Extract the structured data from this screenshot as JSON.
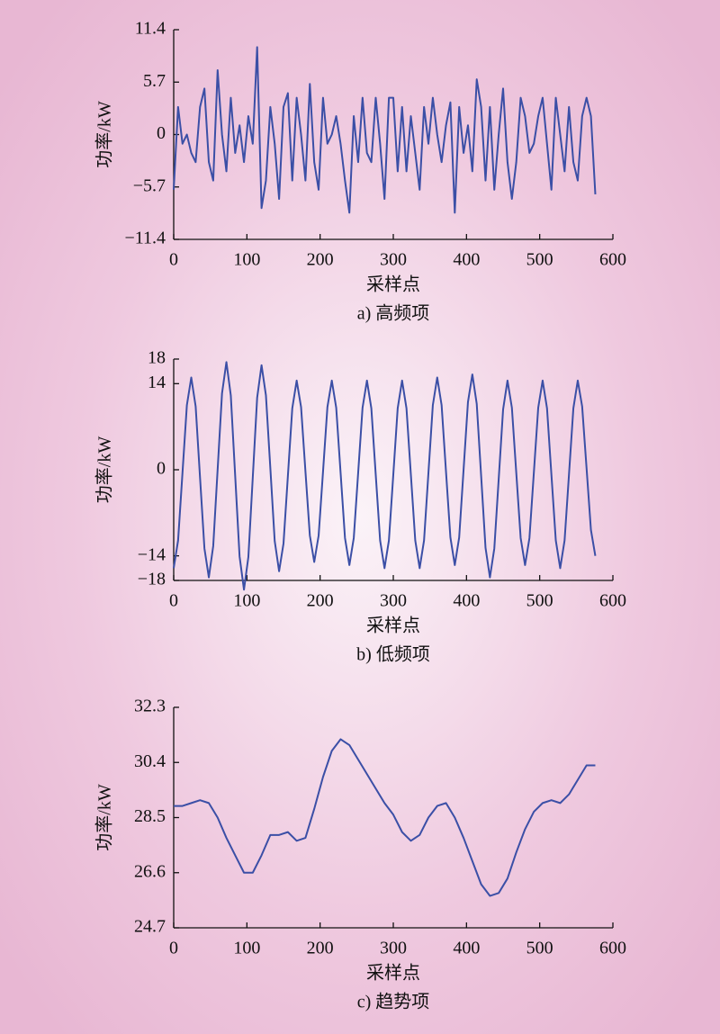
{
  "chart_data": [
    {
      "type": "line",
      "title": "a) 高频项",
      "xlabel": "采样点",
      "ylabel": "功率/kW",
      "color": "#3b4fa6",
      "xlim": [
        0,
        600
      ],
      "ylim": [
        -11.4,
        11.4
      ],
      "xticks": [
        0,
        100,
        200,
        300,
        400,
        500,
        600
      ],
      "yticks": [
        11.4,
        5.7,
        0,
        {
          "value": -5.7,
          "label": "−5.7"
        },
        {
          "value": -11.4,
          "label": "−11.4"
        }
      ],
      "x": [
        0,
        6,
        12,
        18,
        24,
        30,
        36,
        42,
        48,
        54,
        60,
        66,
        72,
        78,
        84,
        90,
        96,
        102,
        108,
        114,
        120,
        126,
        132,
        138,
        144,
        150,
        156,
        162,
        168,
        174,
        180,
        186,
        192,
        198,
        204,
        210,
        216,
        222,
        228,
        234,
        240,
        246,
        252,
        258,
        264,
        270,
        276,
        282,
        288,
        294,
        300,
        306,
        312,
        318,
        324,
        330,
        336,
        342,
        348,
        354,
        360,
        366,
        372,
        378,
        384,
        390,
        396,
        402,
        408,
        414,
        420,
        426,
        432,
        438,
        444,
        450,
        456,
        462,
        468,
        474,
        480,
        486,
        492,
        498,
        504,
        510,
        516,
        522,
        528,
        534,
        540,
        546,
        552,
        558,
        564,
        570,
        576
      ],
      "values": [
        -6,
        3,
        -1,
        0,
        -2,
        -3,
        3,
        5,
        -3,
        -5,
        7,
        0,
        -4,
        4,
        -2,
        1,
        -3,
        2,
        -1,
        9.5,
        -8,
        -5,
        3,
        -1,
        -7,
        3,
        4.5,
        -5,
        4,
        0,
        -5,
        5.5,
        -3,
        -6,
        4,
        -1,
        0,
        2,
        -1,
        -5,
        -8.5,
        2,
        -3,
        4,
        -2,
        -3,
        4,
        -1,
        -7,
        4,
        4,
        -4,
        3,
        -4,
        2,
        -2,
        -6,
        3,
        -1,
        4,
        0,
        -3,
        1,
        3.5,
        -8.5,
        3,
        -2,
        1,
        -4,
        6,
        3,
        -5,
        3,
        -6,
        0,
        5,
        -3,
        -7,
        -3,
        4,
        2,
        -2,
        -1,
        2,
        4,
        -1,
        -6,
        4,
        0,
        -4,
        3,
        -3,
        -5,
        2,
        4,
        2,
        -6.5
      ]
    },
    {
      "type": "line",
      "title": "b) 低频项",
      "xlabel": "采样点",
      "ylabel": "功率/kW",
      "color": "#3b4fa6",
      "xlim": [
        0,
        600
      ],
      "ylim": [
        -18,
        18
      ],
      "xticks": [
        0,
        100,
        200,
        300,
        400,
        500,
        600
      ],
      "yticks": [
        18,
        14,
        0,
        {
          "value": -14,
          "label": "−14"
        },
        {
          "value": -18,
          "label": "−18"
        }
      ],
      "x": [
        0,
        6,
        12,
        18,
        24,
        30,
        36,
        42,
        48,
        54,
        60,
        66,
        72,
        78,
        84,
        90,
        96,
        102,
        108,
        114,
        120,
        126,
        132,
        138,
        144,
        150,
        156,
        162,
        168,
        174,
        180,
        186,
        192,
        198,
        204,
        210,
        216,
        222,
        228,
        234,
        240,
        246,
        252,
        258,
        264,
        270,
        276,
        282,
        288,
        294,
        300,
        306,
        312,
        318,
        324,
        330,
        336,
        342,
        348,
        354,
        360,
        366,
        372,
        378,
        384,
        390,
        396,
        402,
        408,
        414,
        420,
        426,
        432,
        438,
        444,
        450,
        456,
        462,
        468,
        474,
        480,
        486,
        492,
        498,
        504,
        510,
        516,
        522,
        528,
        534,
        540,
        546,
        552,
        558,
        564,
        570,
        576
      ],
      "values": [
        -16,
        -11.5,
        -0.5,
        10.5,
        15,
        10.3,
        -1.3,
        -12.8,
        -17.5,
        -12.4,
        0,
        12.4,
        17.5,
        12.1,
        -1,
        -14.1,
        -19.5,
        -14.2,
        -1.3,
        11.7,
        17,
        12.1,
        0.3,
        -11.6,
        -16.5,
        -12,
        -1,
        10,
        14.5,
        10.2,
        -0.3,
        -10.7,
        -15,
        -10.7,
        -0.3,
        10.2,
        14.5,
        10.1,
        -0.5,
        -11.1,
        -15.5,
        -11.1,
        -0.5,
        10.1,
        14.5,
        10,
        -0.8,
        -11.5,
        -16,
        -11.5,
        -0.8,
        10,
        14.5,
        10,
        -0.8,
        -11.5,
        -16,
        -11.5,
        -0.5,
        10.5,
        15,
        10.5,
        -0.3,
        -11,
        -15.5,
        -11,
        0,
        11,
        15.5,
        10.7,
        -1,
        -12.7,
        -17.5,
        -12.8,
        -1.5,
        9.8,
        14.5,
        10.1,
        -0.5,
        -11.1,
        -15.5,
        -11.1,
        -0.5,
        10.1,
        14.5,
        10,
        -0.8,
        -11.5,
        -16,
        -11.5,
        -0.8,
        10,
        14.5,
        10.3,
        0.3,
        -9.8,
        -14
      ]
    },
    {
      "type": "line",
      "title": "c) 趋势项",
      "xlabel": "采样点",
      "ylabel": "功率/kW",
      "color": "#3b4fa6",
      "xlim": [
        0,
        600
      ],
      "ylim": [
        24.7,
        32.3
      ],
      "xticks": [
        0,
        100,
        200,
        300,
        400,
        500,
        600
      ],
      "yticks": [
        32.3,
        30.4,
        28.5,
        26.6,
        24.7
      ],
      "x": [
        0,
        12,
        24,
        36,
        48,
        60,
        72,
        84,
        96,
        108,
        120,
        132,
        144,
        156,
        168,
        180,
        192,
        204,
        216,
        228,
        240,
        252,
        264,
        276,
        288,
        300,
        312,
        324,
        336,
        348,
        360,
        372,
        384,
        396,
        408,
        420,
        432,
        444,
        456,
        468,
        480,
        492,
        504,
        516,
        528,
        540,
        552,
        564,
        576
      ],
      "values": [
        28.9,
        28.9,
        29.0,
        29.1,
        29.0,
        28.5,
        27.8,
        27.2,
        26.6,
        26.6,
        27.2,
        27.9,
        27.9,
        28.0,
        27.7,
        27.8,
        28.8,
        29.9,
        30.8,
        31.2,
        31.0,
        30.5,
        30.0,
        29.5,
        29.0,
        28.6,
        28.0,
        27.7,
        27.9,
        28.5,
        28.9,
        29.0,
        28.5,
        27.8,
        27.0,
        26.2,
        25.8,
        25.9,
        26.4,
        27.3,
        28.1,
        28.7,
        29.0,
        29.1,
        29.0,
        29.3,
        29.8,
        30.3,
        30.3
      ]
    }
  ]
}
